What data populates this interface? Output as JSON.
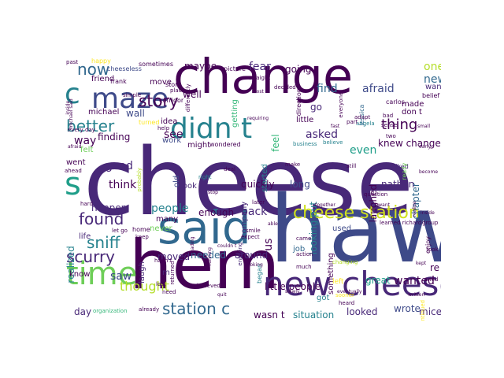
{
  "palette": {
    "background": "#ffffff",
    "dark_purple": "#440154",
    "indigo": "#482878",
    "purple_blue": "#3e4a89",
    "slate_blue": "#31688e",
    "teal": "#26828e",
    "sea_green": "#1f9e89",
    "green": "#35b779",
    "lime": "#6ece58",
    "yellow_green": "#b5de2b",
    "yellow": "#fde725"
  },
  "words": [
    {
      "text": "cheese",
      "color": "#482878"
    },
    {
      "text": "change",
      "color": "#440154"
    },
    {
      "text": "haw",
      "color": "#3e4a89"
    },
    {
      "text": "said",
      "color": "#31688e"
    },
    {
      "text": "hem",
      "color": "#440154"
    },
    {
      "text": "new cheese",
      "color": "#482878"
    },
    {
      "text": "didn t",
      "color": "#26828e"
    },
    {
      "text": "maze",
      "color": "#3e4a89"
    },
    {
      "text": "cheese station",
      "color": "#d0e11c"
    },
    {
      "text": "time",
      "color": "#6ece58"
    },
    {
      "text": "station c",
      "color": "#31688e"
    },
    {
      "text": "now",
      "color": "#31688e"
    },
    {
      "text": "found",
      "color": "#482878"
    },
    {
      "text": "story",
      "color": "#440154"
    },
    {
      "text": "scurry",
      "color": "#482878"
    },
    {
      "text": "sniff",
      "color": "#26828e"
    },
    {
      "text": "better",
      "color": "#26828e"
    },
    {
      "text": "thing",
      "color": "#440154"
    },
    {
      "text": "s",
      "color": "#1f9e89"
    },
    {
      "text": "c",
      "color": "#26828e"
    },
    {
      "text": "people",
      "color": "#26828e"
    },
    {
      "text": "thought",
      "color": "#b5de2b"
    },
    {
      "text": "find",
      "color": "#31688e"
    },
    {
      "text": "afraid",
      "color": "#3e4a89"
    },
    {
      "text": "asked",
      "color": "#482878"
    },
    {
      "text": "fear",
      "color": "#482878"
    },
    {
      "text": "going",
      "color": "#440154"
    },
    {
      "text": "new",
      "color": "#31688e"
    },
    {
      "text": "one",
      "color": "#b5de2b"
    },
    {
      "text": "wall",
      "color": "#3e4a89"
    },
    {
      "text": "finding",
      "color": "#440154"
    },
    {
      "text": "way",
      "color": "#440154"
    },
    {
      "text": "well",
      "color": "#440154"
    },
    {
      "text": "see",
      "color": "#440154"
    },
    {
      "text": "good",
      "color": "#482878"
    },
    {
      "text": "think",
      "color": "#440154"
    },
    {
      "text": "back",
      "color": "#482878"
    },
    {
      "text": "around",
      "color": "#482878"
    },
    {
      "text": "moved",
      "color": "#482878"
    },
    {
      "text": "needed",
      "color": "#31688e"
    },
    {
      "text": "saw",
      "color": "#3e4a89"
    },
    {
      "text": "maybe",
      "color": "#440154"
    },
    {
      "text": "knew changed",
      "color": "#440154"
    },
    {
      "text": "even",
      "color": "#1f9e89"
    },
    {
      "text": "little people",
      "color": "#440154"
    },
    {
      "text": "wanted",
      "color": "#440154"
    },
    {
      "text": "situation",
      "color": "#26828e"
    },
    {
      "text": "looked",
      "color": "#482878"
    },
    {
      "text": "wrote",
      "color": "#3e4a89"
    },
    {
      "text": "mice",
      "color": "#482878"
    },
    {
      "text": "great",
      "color": "#1f9e89"
    },
    {
      "text": "wasn t",
      "color": "#440154"
    },
    {
      "text": "day",
      "color": "#482878"
    },
    {
      "text": "realized",
      "color": "#26828e"
    },
    {
      "text": "happen",
      "color": "#482878"
    },
    {
      "text": "chapter",
      "color": "#31688e"
    },
    {
      "text": "nathan",
      "color": "#482878"
    },
    {
      "text": "laughed",
      "color": "#440154"
    },
    {
      "text": "looking put",
      "color": "#26828e"
    },
    {
      "text": "long",
      "color": "#3e4a89"
    },
    {
      "text": "quickly",
      "color": "#440154"
    },
    {
      "text": "enough",
      "color": "#440154"
    },
    {
      "text": "company",
      "color": "#482878"
    },
    {
      "text": "took",
      "color": "#482878"
    },
    {
      "text": "old",
      "color": "#3e4a89"
    },
    {
      "text": "many",
      "color": "#440154"
    },
    {
      "text": "us",
      "color": "#440154"
    },
    {
      "text": "job",
      "color": "#31688e"
    },
    {
      "text": "got",
      "color": "#26828e"
    },
    {
      "text": "re",
      "color": "#440154"
    },
    {
      "text": "know",
      "color": "#440154"
    },
    {
      "text": "life",
      "color": "#482878"
    },
    {
      "text": "went",
      "color": "#440154"
    },
    {
      "text": "felt",
      "color": "#6ece58"
    },
    {
      "text": "friend",
      "color": "#440154"
    },
    {
      "text": "michael",
      "color": "#440154"
    },
    {
      "text": "move",
      "color": "#440154"
    },
    {
      "text": "idea",
      "color": "#440154"
    },
    {
      "text": "might",
      "color": "#440154"
    },
    {
      "text": "little",
      "color": "#440154"
    },
    {
      "text": "go",
      "color": "#482878"
    },
    {
      "text": "want",
      "color": "#482878"
    },
    {
      "text": "made",
      "color": "#440154"
    },
    {
      "text": "don t",
      "color": "#440154"
    },
    {
      "text": "feel",
      "color": "#35b779"
    },
    {
      "text": "getting",
      "color": "#35b779"
    },
    {
      "text": "started",
      "color": "#26828e"
    },
    {
      "text": "m",
      "color": "#482878"
    },
    {
      "text": "laugh",
      "color": "#482878"
    },
    {
      "text": "never",
      "color": "#6ece58"
    },
    {
      "text": "used",
      "color": "#3e4a89"
    },
    {
      "text": "something",
      "color": "#440154"
    },
    {
      "text": "work",
      "color": "#3e4a89"
    },
    {
      "text": "home",
      "color": "#440154"
    },
    {
      "text": "belief",
      "color": "#440154"
    },
    {
      "text": "cheeseless",
      "color": "#3e4a89"
    },
    {
      "text": "sometimes",
      "color": "#440154"
    },
    {
      "text": "frank",
      "color": "#440154"
    },
    {
      "text": "store",
      "color": "#440154"
    },
    {
      "text": "corridor",
      "color": "#440154"
    },
    {
      "text": "wondered",
      "color": "#440154"
    },
    {
      "text": "picture",
      "color": "#440154"
    },
    {
      "text": "decided",
      "color": "#440154"
    },
    {
      "text": "enjoying",
      "color": "#482878"
    },
    {
      "text": "later",
      "color": "#440154"
    },
    {
      "text": "direction",
      "color": "#440154"
    },
    {
      "text": "business",
      "color": "#26828e"
    },
    {
      "text": "believe",
      "color": "#26828e"
    },
    {
      "text": "angela",
      "color": "#26828e"
    },
    {
      "text": "jessica",
      "color": "#31688e"
    },
    {
      "text": "carlos",
      "color": "#440154"
    },
    {
      "text": "liked",
      "color": "#482878"
    },
    {
      "text": "really",
      "color": "#6ece58"
    },
    {
      "text": "group",
      "color": "#440154"
    },
    {
      "text": "probably",
      "color": "#b5de2b"
    },
    {
      "text": "deal",
      "color": "#440154"
    },
    {
      "text": "make",
      "color": "#440154"
    },
    {
      "text": "still",
      "color": "#440154"
    },
    {
      "text": "need",
      "color": "#440154"
    },
    {
      "text": "lost",
      "color": "#440154"
    },
    {
      "text": "hadn t",
      "color": "#440154"
    },
    {
      "text": "let go",
      "color": "#440154"
    },
    {
      "text": "believed",
      "color": "#440154"
    },
    {
      "text": "returned",
      "color": "#440154"
    },
    {
      "text": "began",
      "color": "#26828e"
    },
    {
      "text": "changing",
      "color": "#b5de2b"
    },
    {
      "text": "learned richard",
      "color": "#440154"
    },
    {
      "text": "much",
      "color": "#440154"
    },
    {
      "text": "action",
      "color": "#440154"
    },
    {
      "text": "left",
      "color": "#fde725"
    },
    {
      "text": "tried",
      "color": "#440154"
    },
    {
      "text": "look",
      "color": "#440154"
    },
    {
      "text": "sooner",
      "color": "#fde725"
    },
    {
      "text": "already",
      "color": "#440154"
    },
    {
      "text": "organization",
      "color": "#35b779"
    },
    {
      "text": "ahead",
      "color": "#440154"
    },
    {
      "text": "hard",
      "color": "#440154"
    },
    {
      "text": "keep",
      "color": "#440154"
    },
    {
      "text": "smile",
      "color": "#440154"
    },
    {
      "text": "question",
      "color": "#440154"
    },
    {
      "text": "bad",
      "color": "#440154"
    },
    {
      "text": "sense",
      "color": "#440154"
    },
    {
      "text": "part",
      "color": "#440154"
    },
    {
      "text": "adapt",
      "color": "#440154"
    },
    {
      "text": "enjoy",
      "color": "#440154"
    },
    {
      "text": "heard",
      "color": "#440154"
    },
    {
      "text": "came",
      "color": "#440154"
    },
    {
      "text": "right",
      "color": "#26828e"
    },
    {
      "text": "happy",
      "color": "#fde725"
    },
    {
      "text": "help",
      "color": "#440154"
    },
    {
      "text": "simple",
      "color": "#440154"
    },
    {
      "text": "every day",
      "color": "#440154"
    },
    {
      "text": "turned",
      "color": "#fde725"
    },
    {
      "text": "expect",
      "color": "#440154"
    },
    {
      "text": "everyone",
      "color": "#440154"
    },
    {
      "text": "differently",
      "color": "#440154"
    },
    {
      "text": "straight",
      "color": "#440154"
    },
    {
      "text": "requiring",
      "color": "#440154"
    },
    {
      "text": "realize",
      "color": "#440154"
    },
    {
      "text": "together",
      "color": "#440154"
    },
    {
      "text": "continued",
      "color": "#fde725"
    },
    {
      "text": "past",
      "color": "#440154"
    },
    {
      "text": "inside",
      "color": "#440154"
    },
    {
      "text": "place",
      "color": "#440154"
    },
    {
      "text": "two",
      "color": "#440154"
    },
    {
      "text": "afraid",
      "color": "#440154"
    },
    {
      "text": "t want",
      "color": "#440154"
    },
    {
      "text": "early",
      "color": "#440154"
    },
    {
      "text": "small",
      "color": "#440154"
    },
    {
      "text": "reading",
      "color": "#440154"
    },
    {
      "text": "couldn t",
      "color": "#440154"
    },
    {
      "text": "fast",
      "color": "#440154"
    },
    {
      "text": "stop",
      "color": "#440154"
    },
    {
      "text": "running",
      "color": "#440154"
    },
    {
      "text": "looking",
      "color": "#440154"
    },
    {
      "text": "kept",
      "color": "#440154"
    },
    {
      "text": "able",
      "color": "#440154"
    },
    {
      "text": "eventually",
      "color": "#440154"
    },
    {
      "text": "written",
      "color": "#440154"
    },
    {
      "text": "michael said",
      "color": "#440154"
    },
    {
      "text": "become",
      "color": "#440154"
    },
    {
      "text": "quit",
      "color": "#440154"
    },
    {
      "text": "slowly",
      "color": "#440154"
    },
    {
      "text": "inside",
      "color": "#440154"
    },
    {
      "text": "lost",
      "color": "#440154"
    }
  ]
}
